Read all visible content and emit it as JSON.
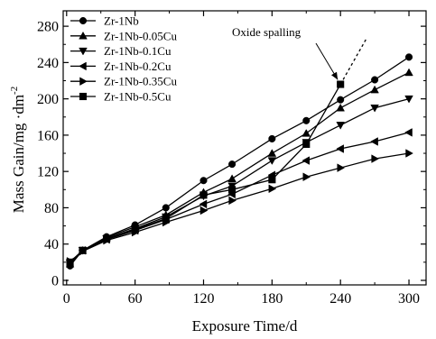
{
  "chart_data": {
    "type": "line",
    "title": "",
    "xlabel": "Exposure Time/d",
    "ylabel": "Mass Gain/mg ·dm",
    "ylabel_superscript": "-2",
    "xlim": [
      -3,
      315
    ],
    "ylim": [
      -5,
      297
    ],
    "x_ticks": [
      0,
      60,
      120,
      180,
      240,
      300
    ],
    "x_tick_labels": [
      "0",
      "60",
      "120",
      "180",
      "240",
      "300"
    ],
    "y_ticks": [
      0,
      40,
      80,
      120,
      160,
      200,
      240,
      280
    ],
    "y_tick_labels": [
      "0",
      "40",
      "80",
      "120",
      "160",
      "200",
      "240",
      "280"
    ],
    "grid": false,
    "legend_position": "top-left",
    "series": [
      {
        "name": "Zr-1Nb",
        "marker": "circle",
        "x": [
          3,
          14,
          35,
          60,
          87,
          120,
          145,
          180,
          210,
          240,
          270,
          300
        ],
        "y": [
          16,
          33,
          48,
          61,
          80,
          110,
          128,
          156,
          176,
          199,
          221,
          246
        ]
      },
      {
        "name": "Zr-1Nb-0.05Cu",
        "marker": "triangle-up",
        "x": [
          3,
          14,
          35,
          60,
          87,
          120,
          145,
          180,
          210,
          240,
          270,
          300
        ],
        "y": [
          18,
          33,
          47,
          59,
          72,
          97,
          112,
          140,
          162,
          190,
          210,
          229
        ]
      },
      {
        "name": "Zr-1Nb-0.1Cu",
        "marker": "triangle-down",
        "x": [
          3,
          14,
          35,
          60,
          87,
          120,
          145,
          180,
          210,
          240,
          270,
          300
        ],
        "y": [
          19,
          33,
          46,
          57,
          70,
          93,
          104,
          132,
          152,
          171,
          190,
          200
        ]
      },
      {
        "name": "Zr-1Nb-0.2Cu",
        "marker": "triangle-left",
        "x": [
          3,
          14,
          35,
          60,
          87,
          120,
          145,
          180,
          210,
          240,
          270,
          300
        ],
        "y": [
          20,
          33,
          45,
          55,
          67,
          84,
          95,
          116,
          132,
          145,
          153,
          163
        ]
      },
      {
        "name": "Zr-1Nb-0.35Cu",
        "marker": "triangle-right",
        "x": [
          3,
          14,
          35,
          60,
          87,
          120,
          145,
          180,
          210,
          240,
          270,
          300
        ],
        "y": [
          21,
          32,
          44,
          53,
          64,
          77,
          88,
          101,
          114,
          124,
          134,
          140
        ]
      },
      {
        "name": "Zr-1Nb-0.5Cu",
        "marker": "square",
        "x": [
          3,
          14,
          35,
          60,
          87,
          120,
          145,
          180,
          210,
          240
        ],
        "y": [
          20,
          33,
          46,
          56,
          68,
          94,
          100,
          111,
          150,
          216
        ],
        "extrapolation": {
          "x": [
            240,
            263
          ],
          "y": [
            216,
            267
          ]
        }
      }
    ],
    "annotations": [
      {
        "text": "Oxide spalling",
        "target": {
          "x": 240,
          "y": 216
        }
      }
    ]
  }
}
